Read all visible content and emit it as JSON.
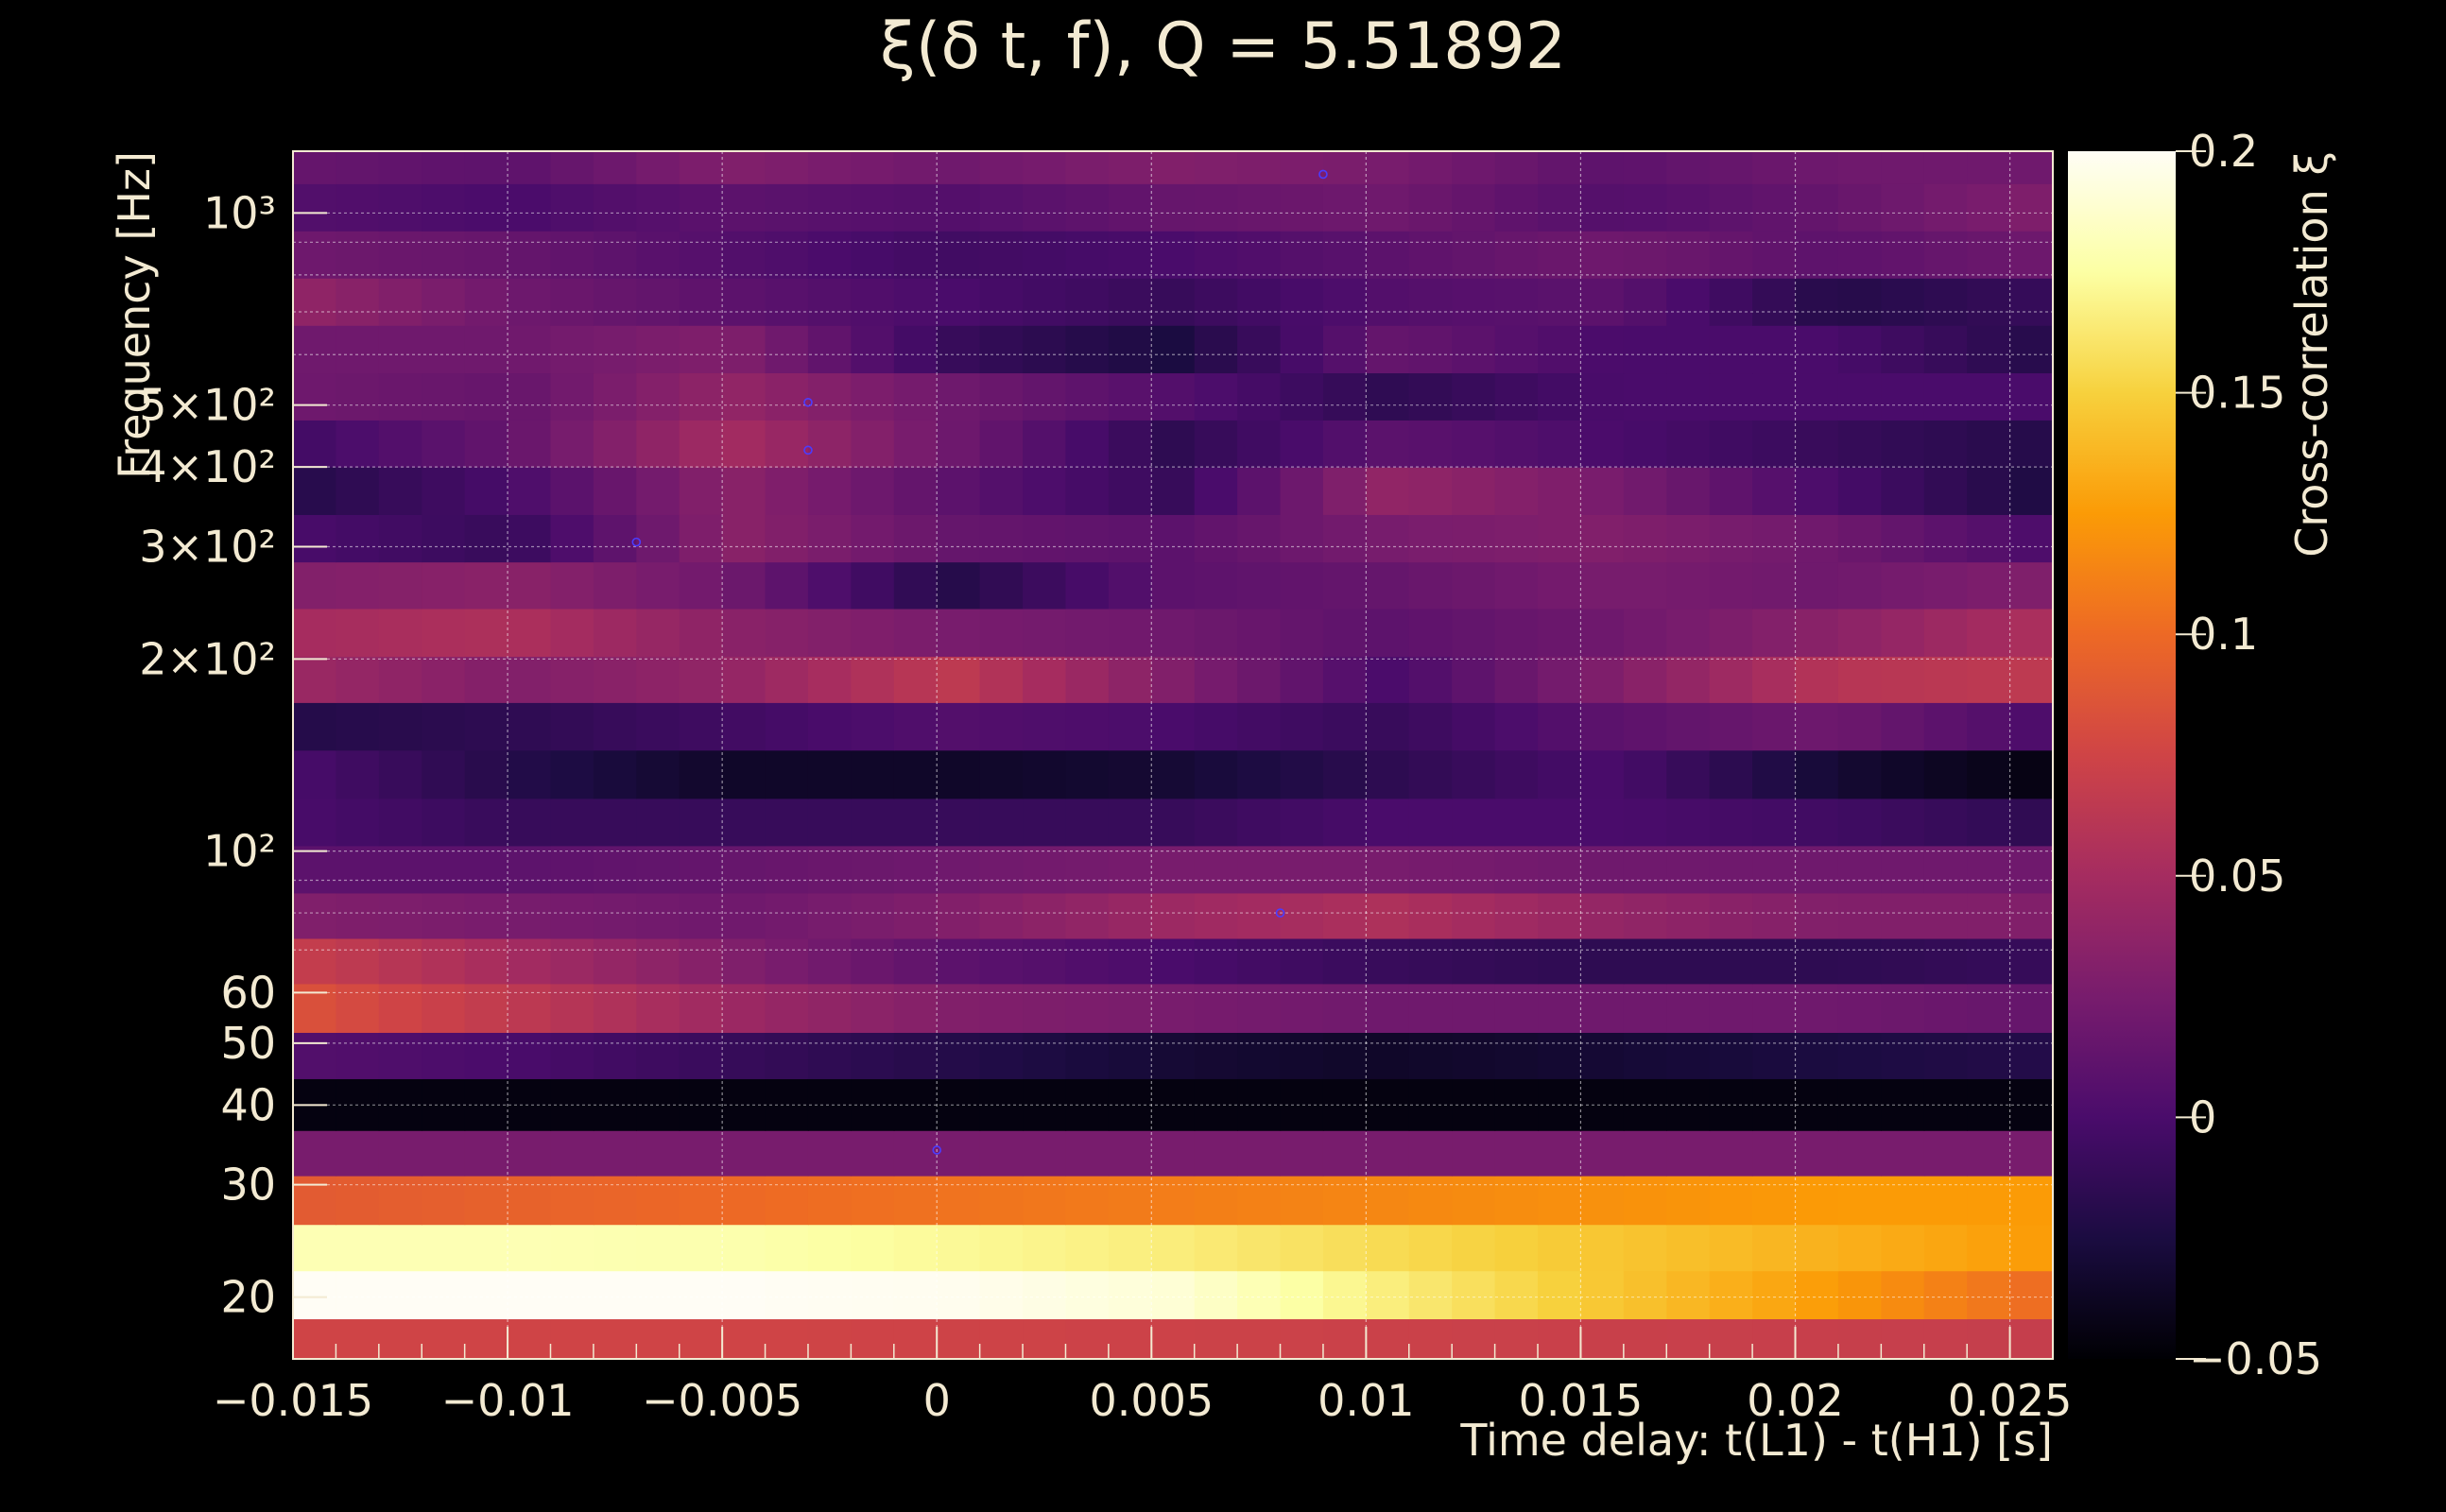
{
  "chart_data": {
    "type": "heatmap",
    "title": "ξ(δ t, f), Q = 5.51892",
    "xlabel": "Time delay: t(L1) - t(H1) [s]",
    "ylabel": "Frequency [Hz]",
    "colorbar_label": "Cross-correlation ξ",
    "x_ticks": [
      "−0.015",
      "−0.01",
      "−0.005",
      "0",
      "0.005",
      "0.01",
      "0.015",
      "0.02",
      "0.025"
    ],
    "x_tick_values": [
      -0.015,
      -0.01,
      -0.005,
      0,
      0.005,
      0.01,
      0.015,
      0.02,
      0.025
    ],
    "xlim": [
      -0.015,
      0.026
    ],
    "y_scale": "log",
    "ylim": [
      16,
      1250
    ],
    "y_ticks": [
      {
        "label": "20",
        "value": 20
      },
      {
        "label": "30",
        "value": 30
      },
      {
        "label": "40",
        "value": 40
      },
      {
        "label": "50",
        "value": 50
      },
      {
        "label": "60",
        "value": 60
      },
      {
        "label": "10²",
        "value": 100
      },
      {
        "label": "2×10²",
        "value": 200
      },
      {
        "label": "3×10²",
        "value": 300
      },
      {
        "label": "4×10²",
        "value": 400
      },
      {
        "label": "5×10²",
        "value": 500
      },
      {
        "label": "10³",
        "value": 1000
      }
    ],
    "colorbar_ticks": [
      "−0.05",
      "0",
      "0.05",
      "0.1",
      "0.15",
      "0.2"
    ],
    "colorbar_tick_values": [
      -0.05,
      0,
      0.05,
      0.1,
      0.15,
      0.2
    ],
    "zlim": [
      -0.05,
      0.2
    ],
    "colormap": [
      "#000004",
      "#1b0c41",
      "#4a0c6b",
      "#781c6d",
      "#a52c60",
      "#cf4446",
      "#ed6925",
      "#fb9b06",
      "#f7d13d",
      "#fcffa4",
      "#fffdf5"
    ],
    "grid": true,
    "frequency_bands": [
      {
        "f_low": 16,
        "f_high": 18.5,
        "values": [
          0.075,
          0.075,
          0.075,
          0.074,
          0.073,
          0.072,
          0.071,
          0.07,
          0.069
        ]
      },
      {
        "f_low": 18.5,
        "f_high": 22,
        "values": [
          0.2,
          0.2,
          0.2,
          0.198,
          0.19,
          0.165,
          0.145,
          0.125,
          0.1
        ]
      },
      {
        "f_low": 22,
        "f_high": 26,
        "values": [
          0.18,
          0.18,
          0.178,
          0.172,
          0.165,
          0.155,
          0.145,
          0.135,
          0.125
        ]
      },
      {
        "f_low": 26,
        "f_high": 31,
        "values": [
          0.09,
          0.095,
          0.1,
          0.105,
          0.11,
          0.115,
          0.12,
          0.125,
          0.125
        ]
      },
      {
        "f_low": 31,
        "f_high": 36.5,
        "values": [
          0.025,
          0.025,
          0.025,
          0.025,
          0.025,
          0.025,
          0.025,
          0.025,
          0.025
        ]
      },
      {
        "f_low": 36.5,
        "f_high": 44,
        "values": [
          -0.045,
          -0.045,
          -0.045,
          -0.045,
          -0.045,
          -0.045,
          -0.045,
          -0.045,
          -0.045
        ]
      },
      {
        "f_low": 44,
        "f_high": 52,
        "values": [
          0.005,
          0.0,
          -0.01,
          -0.02,
          -0.03,
          -0.035,
          -0.03,
          -0.025,
          -0.02
        ]
      },
      {
        "f_low": 52,
        "f_high": 62,
        "values": [
          0.085,
          0.065,
          0.045,
          0.03,
          0.025,
          0.02,
          0.02,
          0.02,
          0.015
        ]
      },
      {
        "f_low": 62,
        "f_high": 73,
        "values": [
          0.07,
          0.05,
          0.03,
          0.01,
          0.0,
          -0.01,
          -0.015,
          -0.015,
          -0.01
        ]
      },
      {
        "f_low": 73,
        "f_high": 86,
        "values": [
          0.03,
          0.025,
          0.02,
          0.03,
          0.045,
          0.055,
          0.04,
          0.03,
          0.03
        ]
      },
      {
        "f_low": 86,
        "f_high": 102,
        "values": [
          0.01,
          0.01,
          0.015,
          0.02,
          0.025,
          0.025,
          0.02,
          0.02,
          0.02
        ]
      },
      {
        "f_low": 102,
        "f_high": 121,
        "values": [
          0.0,
          -0.01,
          -0.01,
          -0.01,
          -0.01,
          0.0,
          0.0,
          -0.005,
          -0.015
        ]
      },
      {
        "f_low": 121,
        "f_high": 144,
        "values": [
          0.0,
          -0.02,
          -0.035,
          -0.035,
          -0.03,
          -0.015,
          0.0,
          -0.03,
          -0.045
        ]
      },
      {
        "f_low": 144,
        "f_high": 171,
        "values": [
          -0.02,
          -0.015,
          -0.005,
          0.005,
          0.0,
          -0.01,
          0.01,
          0.02,
          0.0
        ]
      },
      {
        "f_low": 171,
        "f_high": 202,
        "values": [
          0.045,
          0.03,
          0.04,
          0.065,
          0.03,
          0.0,
          0.03,
          0.06,
          0.065
        ]
      },
      {
        "f_low": 202,
        "f_high": 240,
        "values": [
          0.05,
          0.055,
          0.035,
          0.025,
          0.02,
          0.01,
          0.02,
          0.035,
          0.055
        ]
      },
      {
        "f_low": 240,
        "f_high": 284,
        "values": [
          0.03,
          0.035,
          0.02,
          -0.02,
          0.01,
          0.015,
          0.025,
          0.02,
          0.03
        ]
      },
      {
        "f_low": 284,
        "f_high": 337,
        "values": [
          0.0,
          -0.01,
          0.035,
          0.015,
          0.01,
          0.025,
          0.03,
          0.02,
          0.0
        ]
      },
      {
        "f_low": 337,
        "f_high": 400,
        "values": [
          -0.02,
          0.0,
          0.035,
          0.01,
          -0.01,
          0.04,
          0.025,
          0.0,
          -0.025
        ]
      },
      {
        "f_low": 400,
        "f_high": 474,
        "values": [
          -0.005,
          0.015,
          0.05,
          0.02,
          -0.015,
          0.01,
          0.0,
          -0.01,
          -0.02
        ]
      },
      {
        "f_low": 474,
        "f_high": 562,
        "values": [
          0.02,
          0.015,
          0.04,
          0.02,
          0.005,
          -0.015,
          0.0,
          0.0,
          0.0
        ]
      },
      {
        "f_low": 562,
        "f_high": 667,
        "values": [
          0.02,
          0.02,
          0.03,
          -0.01,
          -0.025,
          0.015,
          0.0,
          0.0,
          -0.02
        ]
      },
      {
        "f_low": 667,
        "f_high": 791,
        "values": [
          0.04,
          0.02,
          0.01,
          0.0,
          -0.01,
          0.005,
          0.01,
          -0.02,
          -0.01
        ]
      },
      {
        "f_low": 791,
        "f_high": 938,
        "values": [
          0.02,
          0.015,
          0.005,
          -0.005,
          0.0,
          0.01,
          0.02,
          0.01,
          0.02
        ]
      },
      {
        "f_low": 938,
        "f_high": 1112,
        "values": [
          0.005,
          0.0,
          0.01,
          0.005,
          0.015,
          0.02,
          0.005,
          0.015,
          0.03
        ]
      },
      {
        "f_low": 1112,
        "f_high": 1250,
        "values": [
          0.015,
          0.01,
          0.03,
          0.02,
          0.03,
          0.025,
          0.01,
          0.02,
          0.02
        ]
      }
    ],
    "markers": [
      {
        "x": 0.009,
        "y": 1150
      },
      {
        "x": -0.003,
        "y": 505
      },
      {
        "x": -0.003,
        "y": 425
      },
      {
        "x": -0.007,
        "y": 305
      },
      {
        "x": 0.008,
        "y": 80
      },
      {
        "x": 0.0,
        "y": 34
      }
    ]
  }
}
